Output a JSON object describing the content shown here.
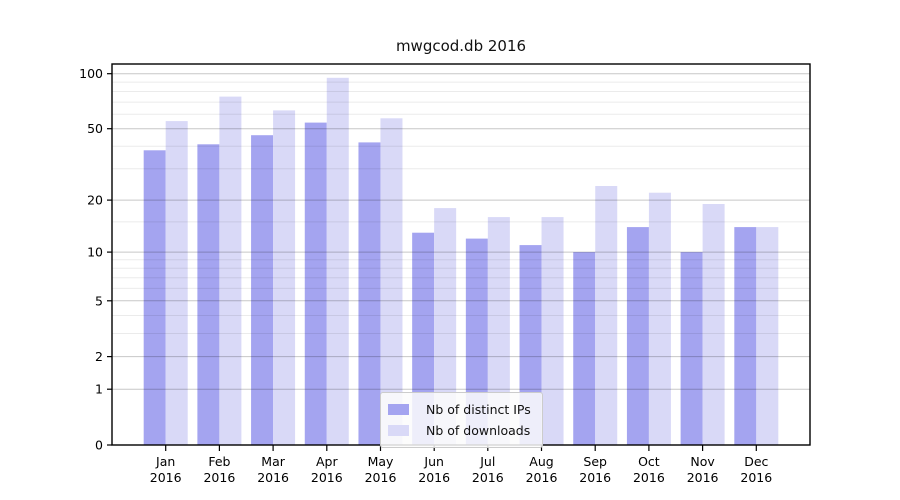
{
  "chart_data": {
    "type": "bar",
    "title": "mwgcod.db 2016",
    "categories": [
      "Jan",
      "Feb",
      "Mar",
      "Apr",
      "May",
      "Jun",
      "Jul",
      "Aug",
      "Sep",
      "Oct",
      "Nov",
      "Dec"
    ],
    "x_tick_year": "2016",
    "series": [
      {
        "name": "Nb of distinct IPs",
        "color": "#a4a4f0",
        "values": [
          38,
          41,
          46,
          54,
          42,
          13,
          12,
          11,
          10,
          14,
          10,
          14
        ]
      },
      {
        "name": "Nb of downloads",
        "color": "#d9d9f7",
        "values": [
          55,
          75,
          63,
          95,
          57,
          18,
          16,
          16,
          24,
          22,
          19,
          14
        ]
      }
    ],
    "y_scale": "log1p",
    "y_major_ticks": [
      0,
      1,
      2,
      5,
      10,
      20,
      50,
      100
    ],
    "y_minor_ticks": [
      3,
      4,
      6,
      7,
      8,
      9,
      15,
      30,
      40,
      60,
      70,
      80,
      90
    ],
    "ylim": [
      0,
      116
    ],
    "grid": "on",
    "legend_position": "bottom-center",
    "colors": {
      "major_grid": "rgba(0,0,0,0.22)",
      "minor_grid": "rgba(0,0,0,0.08)",
      "spine": "#000000"
    }
  }
}
